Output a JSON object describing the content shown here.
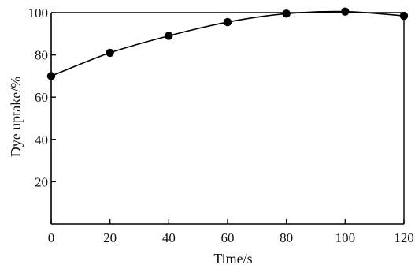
{
  "chart_data": {
    "type": "line",
    "title": "",
    "xlabel": "Time/s",
    "ylabel": "Dye uptake/%",
    "xlim": [
      0,
      120
    ],
    "ylim": [
      0,
      100
    ],
    "x_ticks": [
      0,
      20,
      40,
      60,
      80,
      100,
      120
    ],
    "y_ticks": [
      20,
      40,
      60,
      80,
      100
    ],
    "grid": false,
    "legend": "none",
    "series": [
      {
        "x": [
          0,
          20,
          40,
          60,
          80,
          100,
          120
        ],
        "y": [
          70,
          81,
          89,
          95.5,
          99.5,
          100.5,
          98.5
        ]
      }
    ],
    "colors": {
      "line": "#000000",
      "marker": "#000000",
      "axis": "#000000"
    }
  }
}
